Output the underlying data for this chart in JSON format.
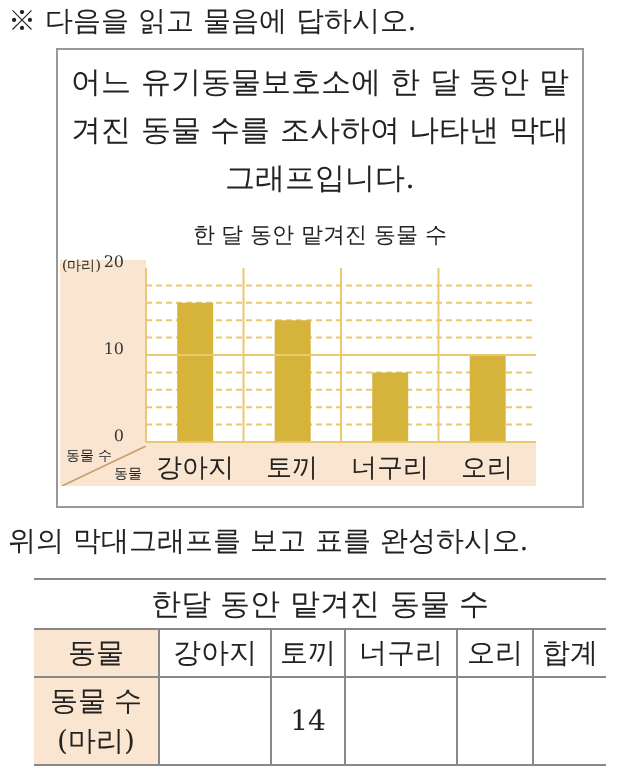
{
  "chart_data": {
    "type": "bar",
    "title": "한 달 동안 맡겨진 동물 수",
    "xlabel": "동물",
    "ylabel": "동물 수",
    "categories": [
      "강아지",
      "토끼",
      "너구리",
      "오리"
    ],
    "values": [
      16,
      14,
      8,
      10
    ],
    "color": "#d6b43c",
    "ylim": [
      0,
      20
    ],
    "yticks": [
      0,
      {
        "value": 2,
        "label": null
      },
      {
        "value": 4,
        "label": null
      },
      {
        "value": 6,
        "label": null
      },
      {
        "value": 8,
        "label": null
      },
      10,
      {
        "value": 12,
        "label": null
      },
      {
        "value": 14,
        "label": null
      },
      {
        "value": 16,
        "label": null
      },
      {
        "value": 18,
        "label": null
      },
      20
    ],
    "grid": true,
    "ref_lines": [
      {
        "axis": "y",
        "value": 10,
        "color": "#eac86c",
        "line_style": "solid"
      }
    ],
    "annotations": [
      "※ 다음을 읽고 물음에 답하시오.",
      "어느 유기동물보호소에 한 달 동안 맡겨진 동물 수를 조사하여 나타낸 막대그래프입니다.",
      "(마리)",
      "위의 막대그래프를 보고 표를 완성하시오.",
      "한달 동안 맡겨진 동물 수",
      "합계",
      "동물 수 (마리)",
      "14"
    ]
  }
}
